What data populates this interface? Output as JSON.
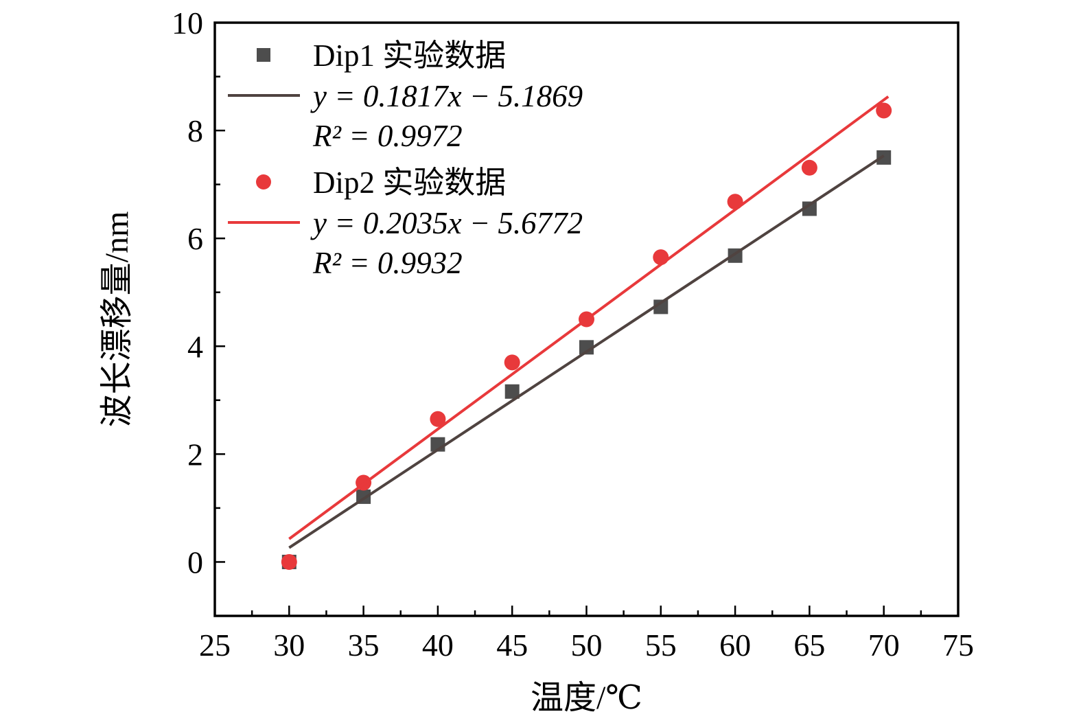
{
  "figure": {
    "background": "#ffffff",
    "frame_color": "#000000"
  },
  "chart_data": {
    "type": "scatter",
    "title": "",
    "xlabel": "温度/℃",
    "ylabel": "波长漂移量/nm",
    "xlim": [
      25,
      75
    ],
    "ylim": [
      -1,
      10
    ],
    "x_major_ticks": [
      25,
      30,
      35,
      40,
      45,
      50,
      55,
      60,
      65,
      70,
      75
    ],
    "x_minor_ticks": [
      27.5,
      32.5,
      37.5,
      42.5,
      47.5,
      52.5,
      57.5,
      62.5,
      67.5,
      72.5
    ],
    "y_major_ticks": [
      0,
      2,
      4,
      6,
      8,
      10
    ],
    "y_minor_ticks": [
      1,
      3,
      5,
      7,
      9
    ],
    "grid": false,
    "legend_position": "upper-left-inside",
    "x": [
      30,
      35,
      40,
      45,
      50,
      55,
      60,
      65,
      70
    ],
    "series": [
      {
        "name": "Dip1 实验数据",
        "marker": "square",
        "color": "#4d4d4d",
        "values": [
          0,
          1.21,
          2.18,
          3.16,
          3.98,
          4.73,
          5.68,
          6.55,
          7.5
        ],
        "fit": {
          "equation": "y = 0.1817x − 5.1869",
          "slope": 0.1817,
          "intercept": -5.1869,
          "r_squared": 0.9972,
          "r_squared_label": "R² = 0.9972",
          "color": "#4f4340",
          "x_range": [
            30,
            70
          ]
        }
      },
      {
        "name": "Dip2 实验数据",
        "marker": "circle",
        "color": "#e8393b",
        "values": [
          0,
          1.47,
          2.65,
          3.7,
          4.5,
          5.65,
          6.68,
          7.31,
          8.37
        ],
        "fit": {
          "equation": "y = 0.2035x − 5.6772",
          "slope": 0.2035,
          "intercept": -5.6772,
          "r_squared": 0.9932,
          "r_squared_label": "R² = 0.9932",
          "color": "#e8393b",
          "x_range": [
            30,
            70.3
          ]
        }
      }
    ]
  },
  "legend": {
    "items": [
      {
        "symbol": "square",
        "color": "#4d4d4d",
        "label": "Dip1 实验数据",
        "italic": false
      },
      {
        "symbol": "line",
        "color": "#4f4340",
        "label": "y = 0.1817x − 5.1869",
        "italic": true
      },
      {
        "symbol": "none",
        "color": "",
        "label": "R² = 0.9972",
        "italic": true
      },
      {
        "symbol": "circle",
        "color": "#e8393b",
        "label": "Dip2 实验数据",
        "italic": false
      },
      {
        "symbol": "line",
        "color": "#e8393b",
        "label": "y = 0.2035x − 5.6772",
        "italic": true
      },
      {
        "symbol": "none",
        "color": "",
        "label": "R² = 0.9932",
        "italic": true
      }
    ]
  }
}
